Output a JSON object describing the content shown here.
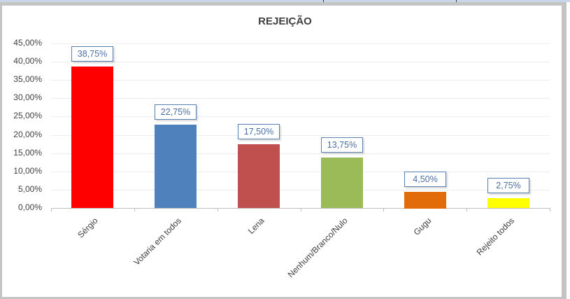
{
  "chart_data": {
    "type": "bar",
    "title": "REJEIÇÃO",
    "xlabel": "",
    "ylabel": "",
    "ylim": [
      0,
      45
    ],
    "grid": true,
    "legend": "none",
    "yticks": [
      "45,00%",
      "40,00%",
      "35,00%",
      "30,00%",
      "25,00%",
      "20,00%",
      "15,00%",
      "10,00%",
      "5,00%",
      "0,00%"
    ],
    "categories": [
      "Sérgio",
      "Votaria em todos",
      "Lena",
      "Nenhum/Branco/Nulo",
      "Gugu",
      "Rejeito todos"
    ],
    "values": [
      38.75,
      22.75,
      17.5,
      13.75,
      4.5,
      2.75
    ],
    "data_labels": [
      "38,75%",
      "22,75%",
      "17,50%",
      "13,75%",
      "4,50%",
      "2,75%"
    ],
    "colors": [
      "#ff0000",
      "#4f81bd",
      "#c0504d",
      "#9bbb59",
      "#e36c0a",
      "#ffff00"
    ]
  }
}
